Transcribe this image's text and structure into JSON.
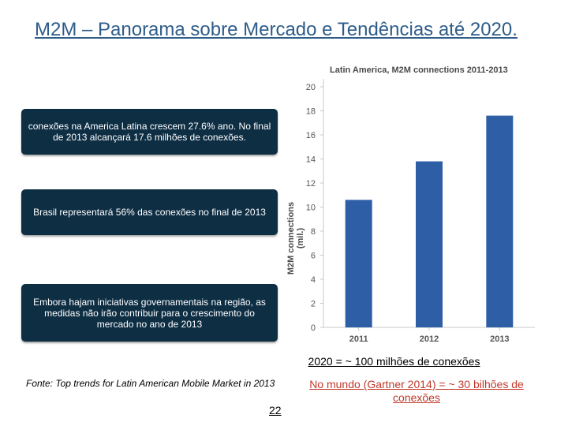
{
  "slide": {
    "title": "M2M – Panorama sobre Mercado e Tendências até 2020.",
    "callouts": [
      "conexões  na America Latina crescem 27.6% ano. No final de 2013 alcançará  17.6 milhões de conexões.",
      "Brasil representará 56% das conexões no final de 2013",
      "Embora hajam iniciativas governamentais na região, as medidas não irão contribuir para o crescimento do mercado no ano de 2013"
    ],
    "note_2020": "2020 = ~ 100 milhões de conexões",
    "note_world": "No mundo (Gartner 2014) = ~ 30 bilhões de conexões",
    "source": "Fonte: Top trends  for Latin American Mobile Market in 2013",
    "page_number": "22"
  },
  "colors": {
    "bar": "#2e5fa6",
    "title": "#2e5d8a",
    "callout_bg": "#0e2e44",
    "note_world": "#c0392b"
  },
  "chart_data": {
    "type": "bar",
    "title": "Latin America, M2M connections 2011-2013",
    "ylabel": "M2M connections (mil.)",
    "xlabel": "",
    "categories": [
      "2011",
      "2012",
      "2013"
    ],
    "values": [
      10.6,
      13.8,
      17.6
    ],
    "ylim": [
      0,
      20
    ],
    "yticks": [
      0,
      2,
      4,
      6,
      8,
      10,
      12,
      14,
      16,
      18,
      20
    ],
    "grid": false,
    "legend": "none"
  }
}
